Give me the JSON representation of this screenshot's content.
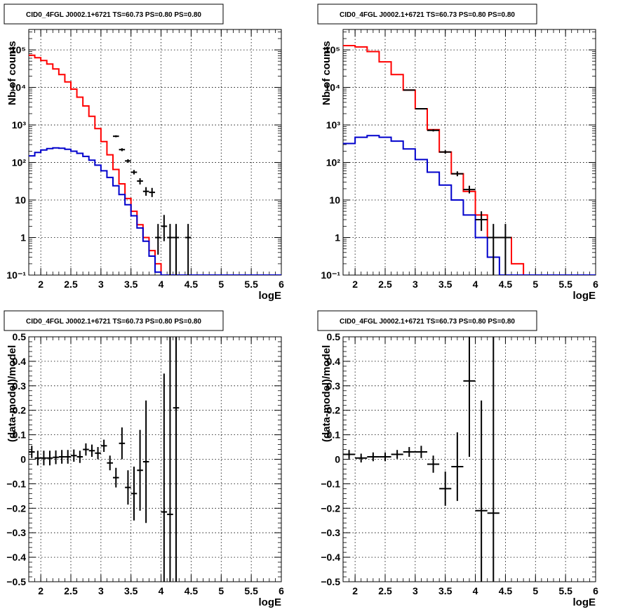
{
  "colors": {
    "data": "#000000",
    "total_model": "#ff0000",
    "source_model": "#0000cc",
    "grid": "#000000"
  },
  "chart_data": [
    {
      "type": "line",
      "title": "CID0_4FGL J0002.1+6721 TS=60.73 PS=0.80 PS=0.80",
      "xlabel": "logE",
      "ylabel": "Nb of counts",
      "xlim": [
        1.8,
        6.0
      ],
      "ylim": [
        0.1,
        350000
      ],
      "yscale": "log",
      "grid": true,
      "xticks": [
        "2",
        "2.5",
        "3",
        "3.5",
        "4",
        "4.5",
        "5",
        "5.5",
        "6"
      ],
      "yticks": [
        "10⁻¹",
        "1",
        "10",
        "10²",
        "10³",
        "10⁴",
        "10⁵"
      ],
      "bin_edges": [
        1.8,
        1.9,
        2.0,
        2.1,
        2.2,
        2.3,
        2.4,
        2.5,
        2.6,
        2.7,
        2.8,
        2.9,
        3.0,
        3.1,
        3.2,
        3.3,
        3.4,
        3.5,
        3.6,
        3.7,
        3.8,
        3.9,
        4.0,
        4.1,
        4.2,
        4.3,
        4.4,
        4.5,
        4.6,
        4.7,
        4.8,
        4.9,
        5.0,
        5.1,
        5.2,
        5.3,
        5.4,
        5.5,
        5.6,
        5.7,
        5.8,
        5.9,
        6.0
      ],
      "series": [
        {
          "kind": "total_model",
          "values": [
            72000,
            62000,
            52000,
            42000,
            31000,
            22000,
            14000,
            9000,
            5500,
            3200,
            1700,
            800,
            360,
            160,
            65,
            27,
            11,
            5,
            2.2,
            1.0,
            0.45,
            0.2,
            0.1,
            0.05,
            0.05,
            0.05,
            0.05,
            0.05,
            0.05,
            0.05,
            0.05,
            0.05,
            0.05,
            0.05,
            0.05,
            0.05,
            0.05,
            0.05,
            0.05,
            0.05,
            0.05,
            0.05
          ]
        },
        {
          "kind": "source_model",
          "values": [
            150,
            185,
            215,
            235,
            245,
            240,
            225,
            200,
            175,
            145,
            115,
            85,
            60,
            40,
            24,
            14,
            7.5,
            3.8,
            1.8,
            0.8,
            0.32,
            0.12,
            0.05,
            0.05,
            0.05,
            0.05,
            0.05,
            0.05,
            0.05,
            0.05,
            0.05,
            0.05,
            0.05,
            0.05,
            0.05,
            0.05,
            0.05,
            0.05,
            0.05,
            0.05,
            0.05,
            0.05
          ]
        },
        {
          "kind": "data",
          "points": [
            {
              "x": 3.55,
              "y": 55,
              "lo": 48,
              "hi": 63
            },
            {
              "x": 3.45,
              "y": 110,
              "lo": 98,
              "hi": 122
            },
            {
              "x": 3.35,
              "y": 220,
              "lo": 200,
              "hi": 240
            },
            {
              "x": 3.25,
              "y": 500,
              "lo": 470,
              "hi": 530
            },
            {
              "x": 3.65,
              "y": 32,
              "lo": 26,
              "hi": 38
            },
            {
              "x": 3.75,
              "y": 17,
              "lo": 13,
              "hi": 22
            },
            {
              "x": 3.85,
              "y": 16,
              "lo": 12,
              "hi": 21
            },
            {
              "x": 3.95,
              "y": 1.0,
              "lo": 0.35,
              "hi": 2.3
            },
            {
              "x": 4.05,
              "y": 2,
              "lo": 0.8,
              "hi": 4
            },
            {
              "x": 4.15,
              "y": 1,
              "lo": 0.1,
              "hi": 2.3
            },
            {
              "x": 4.25,
              "y": 1,
              "lo": 0.1,
              "hi": 2.3
            },
            {
              "x": 4.45,
              "y": 1,
              "lo": 0.1,
              "hi": 2.3
            }
          ]
        }
      ]
    },
    {
      "type": "line",
      "title": "CID0_4FGL J0002.1+6721 TS=60.73 PS=0.80 PS=0.80",
      "xlabel": "logE",
      "ylabel": "Nb of counts",
      "xlim": [
        1.8,
        6.0
      ],
      "ylim": [
        0.1,
        350000
      ],
      "yscale": "log",
      "grid": true,
      "xticks": [
        "2",
        "2.5",
        "3",
        "3.5",
        "4",
        "4.5",
        "5",
        "5.5",
        "6"
      ],
      "yticks": [
        "10⁻¹",
        "1",
        "10",
        "10²",
        "10³",
        "10⁴",
        "10⁵"
      ],
      "bin_edges": [
        1.8,
        2.0,
        2.2,
        2.4,
        2.6,
        2.8,
        3.0,
        3.2,
        3.4,
        3.6,
        3.8,
        4.0,
        4.2,
        4.4,
        4.6,
        4.8,
        5.0,
        5.2,
        5.4,
        5.6,
        5.8,
        6.0
      ],
      "series": [
        {
          "kind": "total_model",
          "values": [
            130000,
            120000,
            90000,
            48000,
            22000,
            8500,
            2700,
            750,
            190,
            50,
            17,
            4,
            1,
            1,
            0.2,
            0.05,
            0.05,
            0.05,
            0.05,
            0.05,
            0.05
          ]
        },
        {
          "kind": "source_model",
          "values": [
            320,
            470,
            520,
            470,
            370,
            230,
            120,
            55,
            25,
            10,
            4,
            1,
            0.3,
            0.05,
            0.05,
            0.05,
            0.05,
            0.05,
            0.05,
            0.05,
            0.05
          ]
        },
        {
          "kind": "data",
          "points": [
            {
              "x": 2.9,
              "y": 8500,
              "lo": 8300,
              "hi": 8700
            },
            {
              "x": 3.1,
              "y": 2700,
              "lo": 2600,
              "hi": 2800
            },
            {
              "x": 3.3,
              "y": 720,
              "lo": 670,
              "hi": 770
            },
            {
              "x": 3.5,
              "y": 190,
              "lo": 170,
              "hi": 210
            },
            {
              "x": 3.7,
              "y": 50,
              "lo": 43,
              "hi": 58
            },
            {
              "x": 3.9,
              "y": 19,
              "lo": 15,
              "hi": 24
            },
            {
              "x": 4.1,
              "y": 3,
              "lo": 1.5,
              "hi": 5
            },
            {
              "x": 4.3,
              "y": 1,
              "lo": 0.1,
              "hi": 2.3
            },
            {
              "x": 4.5,
              "y": 1,
              "lo": 0.1,
              "hi": 2.3
            }
          ]
        }
      ]
    },
    {
      "type": "scatter",
      "title": "CID0_4FGL J0002.1+6721 TS=60.73 PS=0.80 PS=0.80",
      "xlabel": "logE",
      "ylabel": "(data-model)/model",
      "xlim": [
        1.8,
        6.0
      ],
      "ylim": [
        -0.5,
        0.5
      ],
      "yscale": "linear",
      "grid": true,
      "xticks": [
        "2",
        "2.5",
        "3",
        "3.5",
        "4",
        "4.5",
        "5",
        "5.5",
        "6"
      ],
      "yticks": [
        "−0.5",
        "−0.4",
        "−0.3",
        "−0.2",
        "−0.1",
        "0",
        "0.1",
        "0.2",
        "0.3",
        "0.4",
        "0.5"
      ],
      "xhalf": 0.05,
      "points": [
        {
          "x": 1.85,
          "y": 0.03,
          "err": 0.025
        },
        {
          "x": 1.95,
          "y": 0.005,
          "err": 0.03
        },
        {
          "x": 2.05,
          "y": 0.005,
          "err": 0.03
        },
        {
          "x": 2.15,
          "y": 0.005,
          "err": 0.03
        },
        {
          "x": 2.25,
          "y": 0.008,
          "err": 0.028
        },
        {
          "x": 2.35,
          "y": 0.01,
          "err": 0.028
        },
        {
          "x": 2.45,
          "y": 0.01,
          "err": 0.028
        },
        {
          "x": 2.55,
          "y": 0.015,
          "err": 0.025
        },
        {
          "x": 2.65,
          "y": 0.01,
          "err": 0.025
        },
        {
          "x": 2.75,
          "y": 0.04,
          "err": 0.025
        },
        {
          "x": 2.85,
          "y": 0.035,
          "err": 0.025
        },
        {
          "x": 2.95,
          "y": 0.025,
          "err": 0.025
        },
        {
          "x": 3.05,
          "y": 0.055,
          "err": 0.025
        },
        {
          "x": 3.15,
          "y": -0.015,
          "err": 0.03
        },
        {
          "x": 3.25,
          "y": -0.075,
          "err": 0.04
        },
        {
          "x": 3.35,
          "y": 0.065,
          "err": 0.065
        },
        {
          "x": 3.45,
          "y": -0.115,
          "err": 0.07
        },
        {
          "x": 3.55,
          "y": -0.14,
          "err": 0.11
        },
        {
          "x": 3.65,
          "y": -0.045,
          "err": 0.165
        },
        {
          "x": 3.75,
          "y": -0.01,
          "err": 0.25
        },
        {
          "x": 4.05,
          "y": -0.215,
          "err": 0.565
        },
        {
          "x": 4.15,
          "y": -0.225,
          "err": 0.8
        },
        {
          "x": 4.25,
          "y": 0.21,
          "err": 0.8
        }
      ]
    },
    {
      "type": "scatter",
      "title": "CID0_4FGL J0002.1+6721 TS=60.73 PS=0.80 PS=0.80",
      "xlabel": "logE",
      "ylabel": "(data-model)/model",
      "xlim": [
        1.8,
        6.0
      ],
      "ylim": [
        -0.5,
        0.5
      ],
      "yscale": "linear",
      "grid": true,
      "xticks": [
        "2",
        "2.5",
        "3",
        "3.5",
        "4",
        "4.5",
        "5",
        "5.5",
        "6"
      ],
      "yticks": [
        "−0.5",
        "−0.4",
        "−0.3",
        "−0.2",
        "−0.1",
        "0",
        "0.1",
        "0.2",
        "0.3",
        "0.4",
        "0.5"
      ],
      "xhalf": 0.1,
      "points": [
        {
          "x": 1.9,
          "y": 0.02,
          "err": 0.018
        },
        {
          "x": 2.1,
          "y": 0.005,
          "err": 0.018
        },
        {
          "x": 2.3,
          "y": 0.01,
          "err": 0.018
        },
        {
          "x": 2.5,
          "y": 0.01,
          "err": 0.018
        },
        {
          "x": 2.7,
          "y": 0.02,
          "err": 0.018
        },
        {
          "x": 2.9,
          "y": 0.03,
          "err": 0.02
        },
        {
          "x": 3.1,
          "y": 0.03,
          "err": 0.025
        },
        {
          "x": 3.3,
          "y": -0.02,
          "err": 0.035
        },
        {
          "x": 3.5,
          "y": -0.12,
          "err": 0.07
        },
        {
          "x": 3.7,
          "y": -0.03,
          "err": 0.14
        },
        {
          "x": 3.9,
          "y": 0.32,
          "err": 0.31
        },
        {
          "x": 4.1,
          "y": -0.21,
          "err": 0.45
        },
        {
          "x": 4.3,
          "y": -0.22,
          "err": 0.8
        }
      ]
    }
  ]
}
